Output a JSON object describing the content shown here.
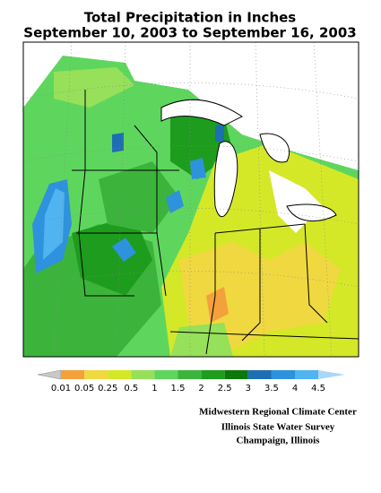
{
  "title": {
    "line1": "Total Precipitation in Inches",
    "line2": "September 10, 2003 to September 16, 2003"
  },
  "legend": {
    "labels": [
      "0.01",
      "0.05",
      "0.25",
      "0.5",
      "1",
      "1.5",
      "2",
      "2.5",
      "3",
      "3.5",
      "4",
      "4.5"
    ],
    "colors": [
      "#c8c8c8",
      "#f4a03c",
      "#f0d840",
      "#d4e828",
      "#96e05a",
      "#5ed65e",
      "#3cb43c",
      "#1e9c1e",
      "#0a780a",
      "#1e6eb4",
      "#2e92dc",
      "#50b4f0",
      "#a8d8f8"
    ]
  },
  "credits": [
    "Midwestern Regional Climate Center",
    "Illinois State Water Survey",
    "Champaign, Illinois"
  ]
}
